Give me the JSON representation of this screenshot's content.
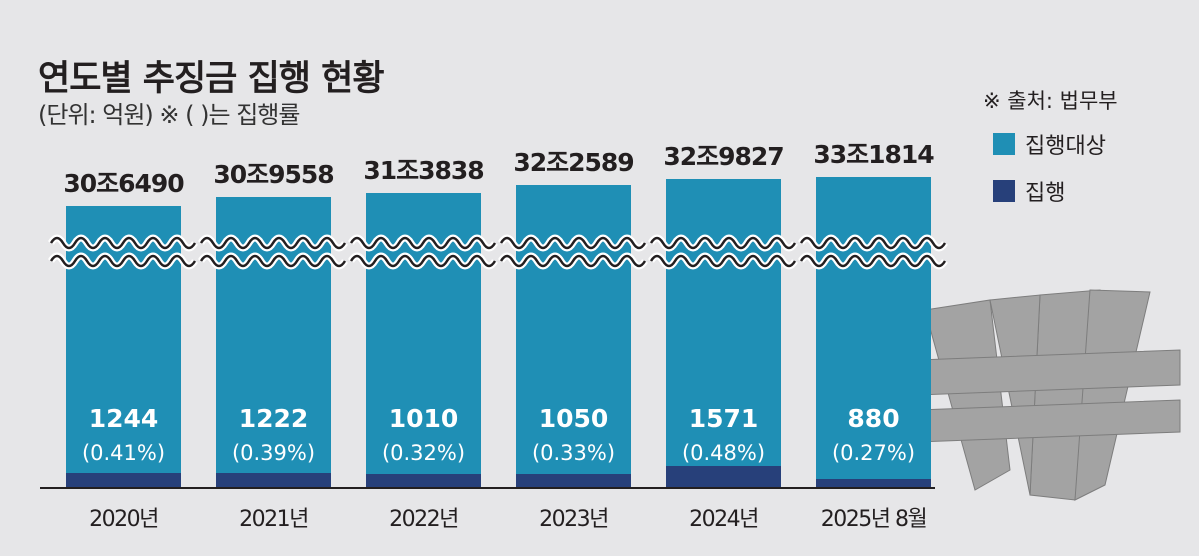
{
  "chart_data": {
    "type": "bar",
    "title": "연도별 추징금 집행 현황",
    "subtitle": "(단위: 억원) ※ ( )는 집행률",
    "source": "※ 출처: 법무부",
    "categories": [
      "2020년",
      "2021년",
      "2022년",
      "2023년",
      "2024년",
      "2025년 8월"
    ],
    "series": [
      {
        "name": "집행대상",
        "color": "#1f8fb5",
        "values": [
          306490,
          309558,
          313838,
          322589,
          329827,
          331814
        ],
        "labels": [
          "30조6490",
          "30조9558",
          "31조3838",
          "32조2589",
          "32조9827",
          "33조1814"
        ]
      },
      {
        "name": "집행",
        "color": "#27407a",
        "values": [
          1244,
          1222,
          1010,
          1050,
          1571,
          880
        ],
        "labels": [
          "1244",
          "1222",
          "1010",
          "1050",
          "1571",
          "880"
        ],
        "rates": [
          "(0.41%)",
          "(0.39%)",
          "(0.32%)",
          "(0.33%)",
          "(0.48%)",
          "(0.27%)"
        ]
      }
    ],
    "axis_break": true,
    "legend_position": "top-right"
  }
}
